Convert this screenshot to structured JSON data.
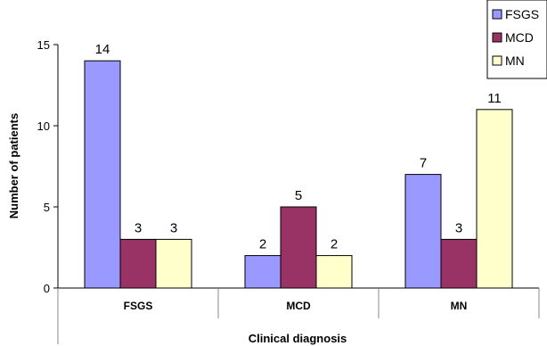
{
  "chart_data": {
    "type": "bar",
    "title": "",
    "xlabel": "Clinical diagnosis",
    "ylabel": "Number of patients",
    "categories": [
      "FSGS",
      "MCD",
      "MN"
    ],
    "series": [
      {
        "name": "FSGS",
        "values": [
          14,
          2,
          7
        ],
        "color": "#9999ff"
      },
      {
        "name": "MCD",
        "values": [
          3,
          5,
          3
        ],
        "color": "#993366"
      },
      {
        "name": "MN",
        "values": [
          3,
          2,
          11
        ],
        "color": "#ffffcc"
      }
    ],
    "ylim": [
      0,
      15
    ],
    "yticks": [
      "0",
      "5",
      "10",
      "15"
    ],
    "grid": false,
    "legend_position": "top-right",
    "data_labels": true
  }
}
